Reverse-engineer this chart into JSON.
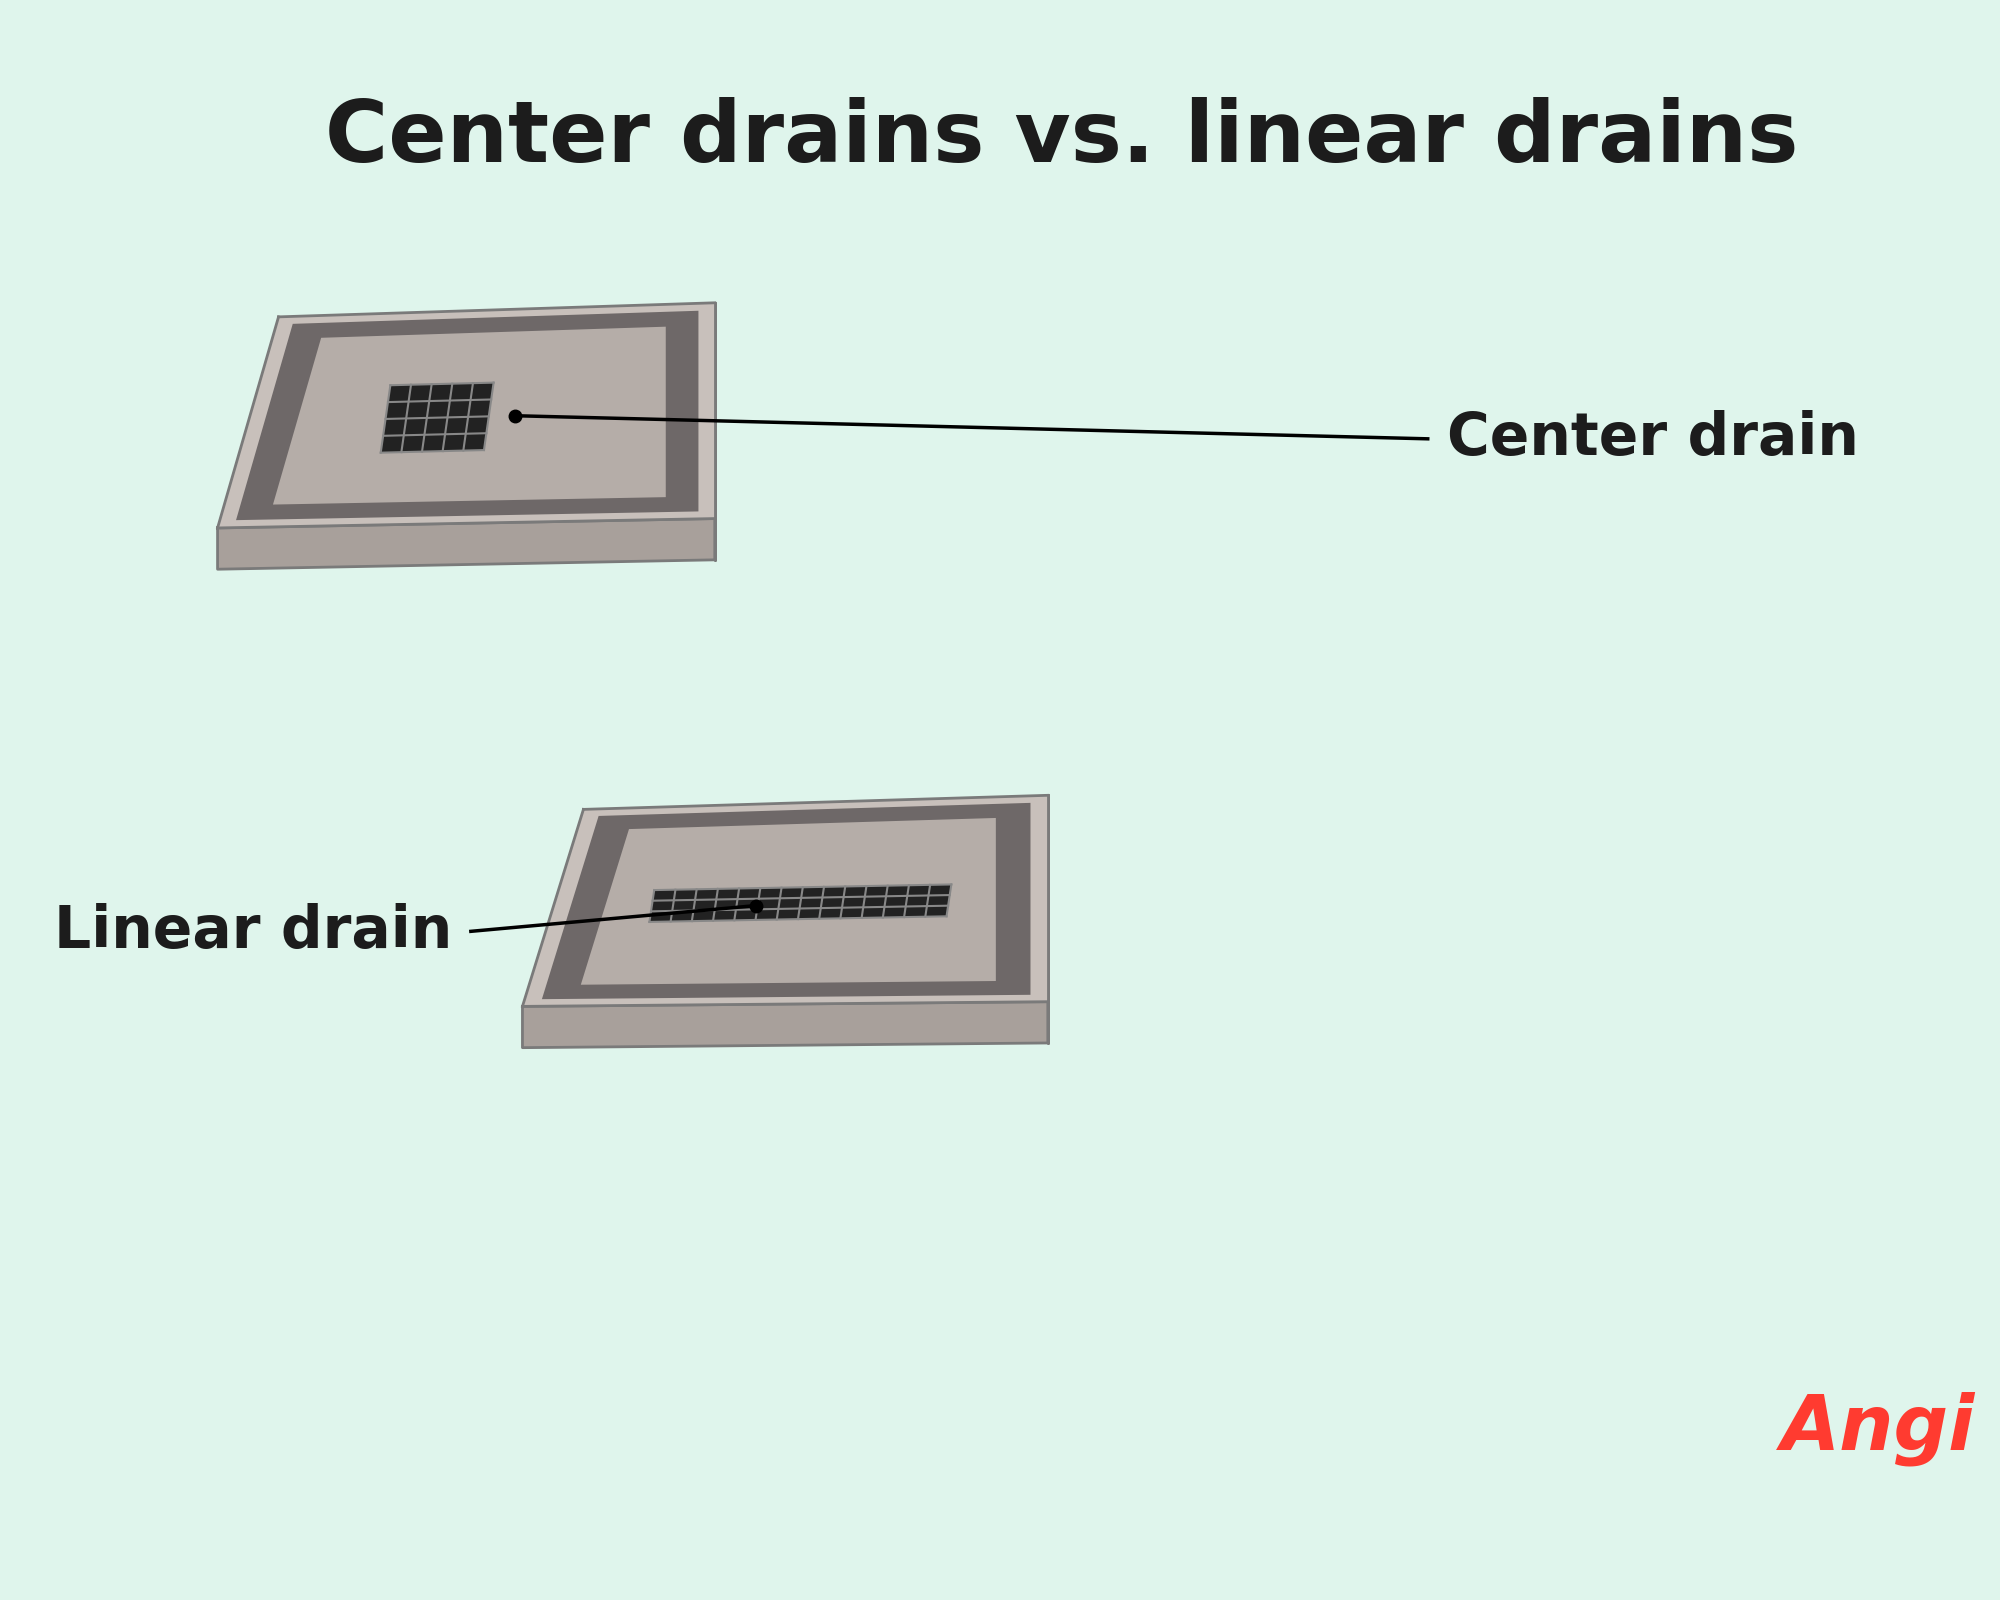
{
  "title": "Center drains vs. linear drains",
  "title_color": "#1c1c1c",
  "bg_color": "#dff5ec",
  "label_center": "Center drain",
  "label_linear": "Linear drain",
  "label_color": "#1c1c1c",
  "angi_text": "Angi",
  "angi_color": "#ff3b30",
  "slab_top_light": "#c8c0bb",
  "slab_top_mid": "#b8b0ab",
  "slab_side_front": "#a8a09b",
  "slab_side_dark": "#787070",
  "inner_dark_border": "#6e6868",
  "inner_surface": "#b5ada8",
  "drain_dark": "#2a2a2a",
  "drain_grid_bg": "#2e2e2e",
  "line_color": "#1a1a1a"
}
